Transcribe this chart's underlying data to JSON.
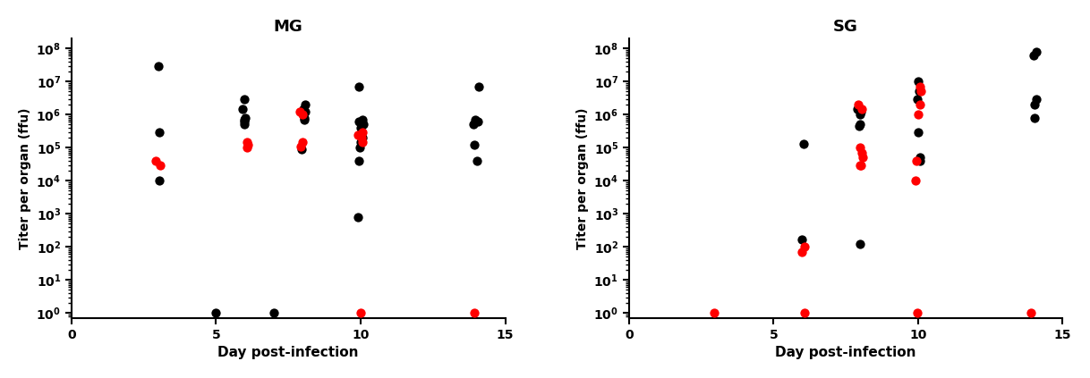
{
  "MG": {
    "black": {
      "3": [
        30000000.0,
        300000.0,
        10000.0
      ],
      "5": [
        1.0
      ],
      "6": [
        3000000.0,
        1500000.0,
        800000.0,
        700000.0,
        600000.0,
        500000.0
      ],
      "7": [
        1.0
      ],
      "8": [
        2000000.0,
        1500000.0,
        1200000.0,
        800000.0,
        700000.0,
        90000.0
      ],
      "10": [
        7000000.0,
        700000.0,
        600000.0,
        500000.0,
        400000.0,
        300000.0,
        200000.0,
        150000.0,
        100000.0,
        40000.0,
        800.0
      ],
      "14": [
        7000000.0,
        700000.0,
        600000.0,
        500000.0,
        120000.0,
        40000.0
      ]
    },
    "red": {
      "3": [
        40000.0,
        30000.0
      ],
      "6": [
        150000.0,
        120000.0,
        100000.0
      ],
      "8": [
        1200000.0,
        1000000.0,
        150000.0,
        110000.0
      ],
      "10": [
        300000.0,
        250000.0,
        200000.0,
        150000.0,
        1.0
      ],
      "14": [
        1.0
      ]
    }
  },
  "SG": {
    "black": {
      "3": [],
      "6": [
        170.0,
        130000.0
      ],
      "8": [
        120.0,
        1500000.0,
        1200000.0,
        1000000.0,
        500000.0,
        450000.0
      ],
      "10": [
        10000000.0,
        5000000.0,
        3000000.0,
        300000.0,
        50000.0,
        40000.0
      ],
      "14": [
        80000000.0,
        60000000.0,
        3000000.0,
        2000000.0,
        800000.0
      ]
    },
    "red": {
      "3": [
        1.0
      ],
      "6": [
        100.0,
        70.0,
        1.0
      ],
      "8": [
        2000000.0,
        1500000.0,
        100000.0,
        70000.0,
        50000.0,
        30000.0,
        30000.0
      ],
      "10": [
        7000000.0,
        5000000.0,
        2000000.0,
        1000000.0,
        40000.0,
        10000.0,
        1.0
      ],
      "14": [
        1.0
      ]
    }
  },
  "xlim": [
    0,
    15
  ],
  "yticks": [
    1,
    10,
    100,
    1000,
    10000,
    100000,
    1000000,
    10000000,
    100000000
  ],
  "xlabel": "Day post-infection",
  "ylabel": "Titer per organ (ffu)",
  "title_MG": "MG",
  "title_SG": "SG",
  "black_color": "#000000",
  "red_color": "#FF0000",
  "marker_size": 55,
  "bg_color": "#FFFFFF",
  "figsize": [
    12.18,
    4.23
  ],
  "dpi": 100
}
